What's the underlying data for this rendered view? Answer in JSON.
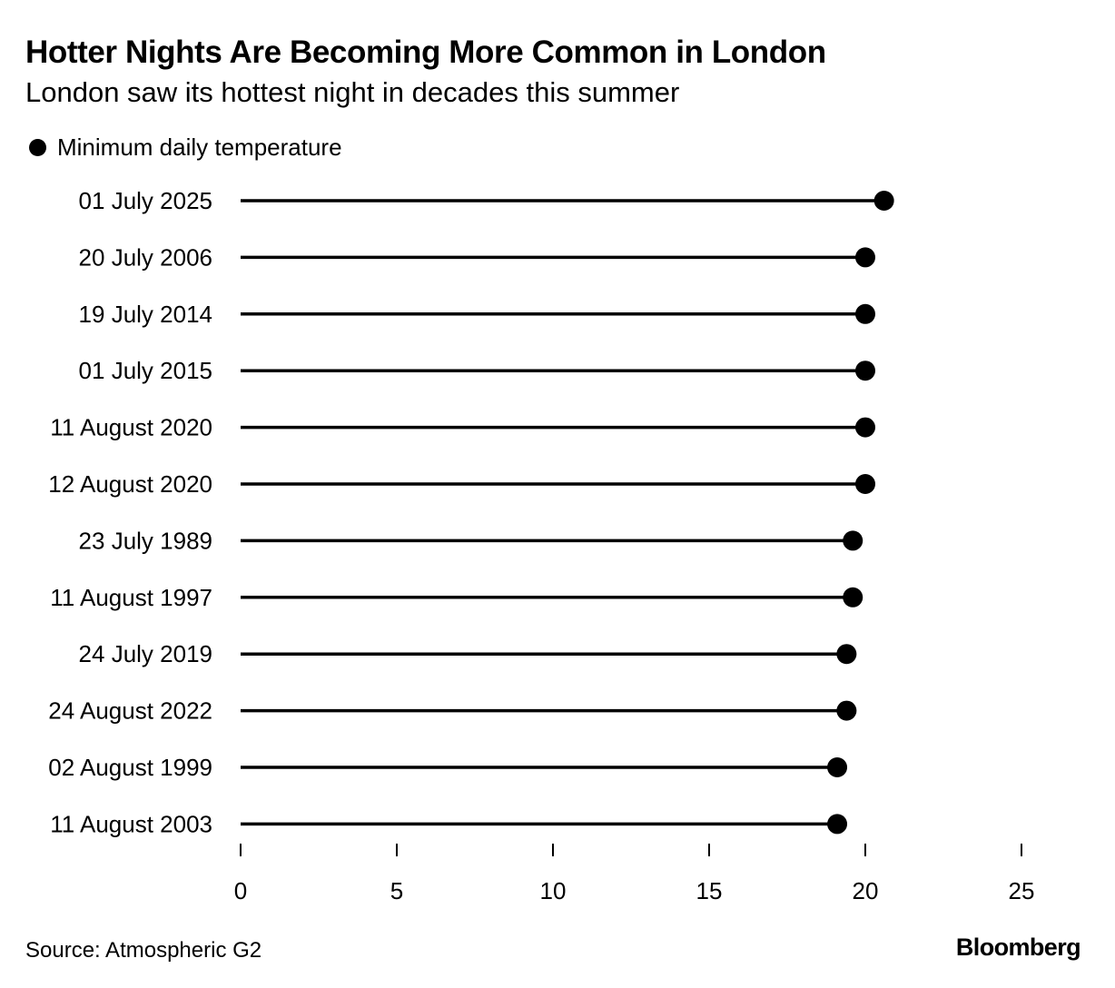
{
  "header": {
    "title": "Hotter Nights Are Becoming More Common in London",
    "subtitle": "London saw its hottest night in decades this summer"
  },
  "legend": {
    "label": "Minimum daily temperature"
  },
  "footer": {
    "source": "Source: Atmospheric G2",
    "brand": "Bloomberg"
  },
  "chart_data": {
    "type": "lollipop",
    "title": "Hotter Nights Are Becoming More Common in London",
    "subtitle": "London saw its hottest night in decades this summer",
    "orientation": "horizontal",
    "series": [
      {
        "name": "Minimum daily temperature",
        "color": "#000000"
      }
    ],
    "categories": [
      "01 July 2025",
      "20 July 2006",
      "19 July 2014",
      "01 July 2015",
      "11 August 2020",
      "12 August 2020",
      "23 July 1989",
      "11 August 1997",
      "24 July 2019",
      "24 August 2022",
      "02 August 1999",
      "11 August 2003"
    ],
    "values": [
      20.6,
      20.0,
      20.0,
      20.0,
      20.0,
      20.0,
      19.6,
      19.6,
      19.4,
      19.4,
      19.1,
      19.1
    ],
    "xlim": [
      0,
      25
    ],
    "xticks": [
      0,
      5,
      10,
      15,
      20,
      25
    ],
    "xlabel": "",
    "ylabel": "",
    "grid": false,
    "legend_position": "top-left"
  }
}
